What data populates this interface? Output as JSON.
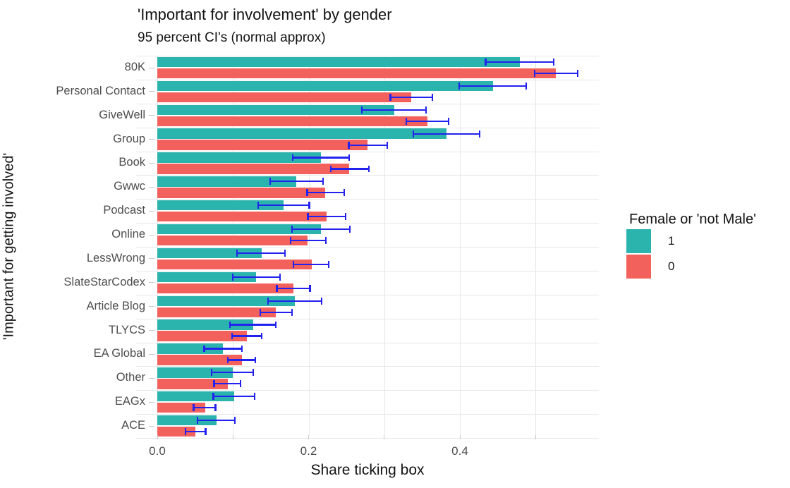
{
  "chart_data": {
    "type": "bar",
    "orientation": "horizontal",
    "title": "'Important for involvement' by gender",
    "subtitle": "95 percent CI's (normal approx)",
    "xlabel": "Share ticking box",
    "ylabel": "'Important for getting involved'",
    "legend_title": "Female or 'not Male'",
    "legend_position": "right",
    "grid": true,
    "xlim": [
      0,
      0.585
    ],
    "x_major_ticks": [
      0.0,
      0.2,
      0.4
    ],
    "x_tick_labels": [
      "0.0",
      "0.2",
      "0.4"
    ],
    "x_minor_ticks": [
      0.1,
      0.3,
      0.5
    ],
    "error_bars": "95% CI",
    "error_bar_color": "#2222ee",
    "categories": [
      "80K",
      "Personal Contact",
      "GiveWell",
      "Group",
      "Book",
      "Gwwc",
      "Podcast",
      "Online",
      "LessWrong",
      "SlateStarCodex",
      "Article Blog",
      "TLYCS",
      "EA Global",
      "Other",
      "EAGx",
      "ACE"
    ],
    "series": [
      {
        "name": "1",
        "color": "#2bb3ad",
        "values": [
          0.479,
          0.444,
          0.313,
          0.382,
          0.216,
          0.184,
          0.167,
          0.216,
          0.138,
          0.131,
          0.182,
          0.127,
          0.087,
          0.1,
          0.102,
          0.078
        ],
        "ci_low": [
          0.434,
          0.399,
          0.27,
          0.338,
          0.179,
          0.149,
          0.133,
          0.178,
          0.105,
          0.1,
          0.146,
          0.096,
          0.062,
          0.072,
          0.074,
          0.053
        ],
        "ci_high": [
          0.524,
          0.488,
          0.355,
          0.426,
          0.254,
          0.219,
          0.201,
          0.255,
          0.169,
          0.162,
          0.217,
          0.157,
          0.112,
          0.127,
          0.129,
          0.103
        ]
      },
      {
        "name": "0",
        "color": "#f3615c",
        "values": [
          0.527,
          0.336,
          0.357,
          0.278,
          0.254,
          0.222,
          0.224,
          0.199,
          0.204,
          0.18,
          0.157,
          0.118,
          0.112,
          0.093,
          0.063,
          0.05
        ],
        "ci_low": [
          0.499,
          0.308,
          0.329,
          0.253,
          0.229,
          0.198,
          0.199,
          0.176,
          0.18,
          0.158,
          0.136,
          0.099,
          0.093,
          0.075,
          0.048,
          0.037
        ],
        "ci_high": [
          0.556,
          0.364,
          0.385,
          0.304,
          0.28,
          0.247,
          0.249,
          0.223,
          0.227,
          0.202,
          0.178,
          0.138,
          0.13,
          0.11,
          0.077,
          0.064
        ]
      }
    ]
  }
}
